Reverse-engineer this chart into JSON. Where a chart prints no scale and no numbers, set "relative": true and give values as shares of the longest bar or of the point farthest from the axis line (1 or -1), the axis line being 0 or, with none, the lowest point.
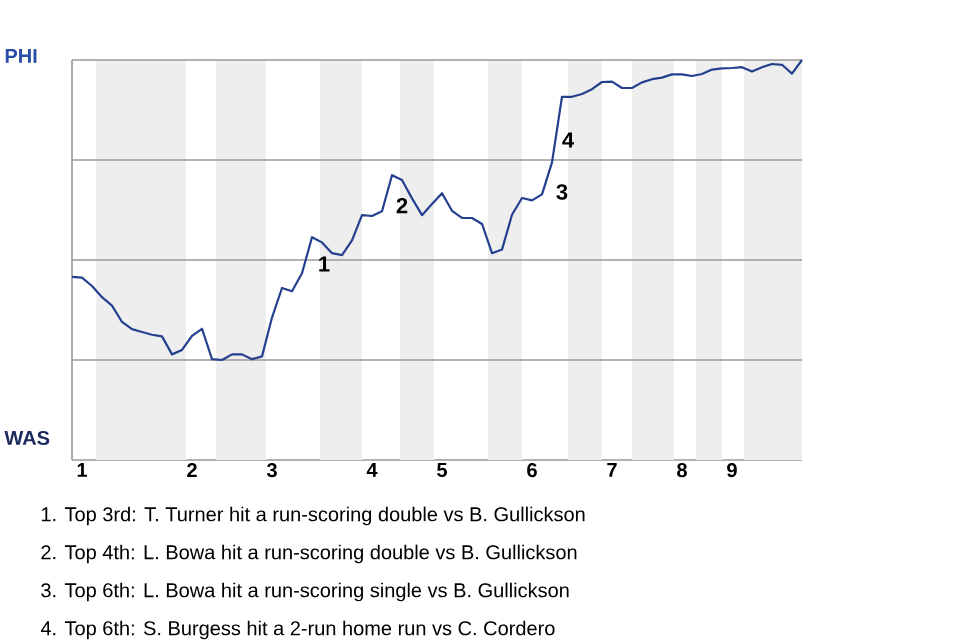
{
  "chart_data": {
    "type": "line",
    "relative": true,
    "categories": [
      null,
      "1",
      null,
      null,
      null,
      null,
      null,
      null,
      null,
      null,
      null,
      null,
      "2",
      null,
      null,
      null,
      null,
      null,
      null,
      null,
      "3",
      null,
      null,
      null,
      null,
      null,
      null,
      null,
      null,
      null,
      "4",
      null,
      null,
      null,
      null,
      null,
      null,
      "5",
      null,
      null,
      null,
      null,
      null,
      null,
      null,
      null,
      "6",
      null,
      null,
      null,
      null,
      null,
      null,
      null,
      "7",
      null,
      null,
      null,
      null,
      null,
      null,
      "8",
      null,
      null,
      null,
      null,
      "9",
      null,
      null,
      null,
      null,
      null,
      null,
      null
    ],
    "series": [
      {
        "color": "#24408e",
        "values": [
          0.458,
          0.456,
          0.435,
          0.407,
          0.386,
          0.345,
          0.327,
          0.32,
          0.313,
          0.309,
          0.264,
          0.275,
          0.31,
          0.328,
          0.252,
          0.25,
          0.264,
          0.264,
          0.252,
          0.259,
          0.356,
          0.43,
          0.422,
          0.467,
          0.557,
          0.544,
          0.517,
          0.512,
          0.549,
          0.612,
          0.61,
          0.622,
          0.712,
          0.7,
          0.654,
          0.612,
          0.64,
          0.667,
          0.623,
          0.605,
          0.605,
          0.59,
          0.517,
          0.526,
          0.613,
          0.655,
          0.649,
          0.664,
          0.744,
          0.908,
          0.908,
          0.915,
          0.927,
          0.945,
          0.946,
          0.93,
          0.93,
          0.944,
          0.952,
          0.956,
          0.964,
          0.964,
          0.96,
          0.965,
          0.976,
          0.979,
          0.98,
          0.982,
          0.971,
          0.982,
          0.99,
          0.988,
          0.966,
          1
        ]
      }
    ],
    "ref_lines": [
      {
        "axis": "y",
        "value": 0.25,
        "color": "#999999"
      },
      {
        "axis": "y",
        "value": 0.5,
        "color": "#999999"
      },
      {
        "axis": "y",
        "value": 0.75,
        "color": "#999999"
      },
      {
        "axis": "y",
        "value": 1,
        "color": "#999999"
      }
    ],
    "annotations": [
      "PHI",
      "WAS",
      "1",
      "2",
      "3",
      "4",
      "1. Top 3rd: T. Turner hit a run-scoring double vs B. Gullickson",
      "2. Top 4th: L. Bowa hit a run-scoring double vs B. Gullickson",
      "3. Top 6th: L. Bowa hit a run-scoring single vs B. Gullickson",
      "4. Top 6th: S. Burgess hit a 2-run home run vs C. Cordero"
    ]
  }
}
